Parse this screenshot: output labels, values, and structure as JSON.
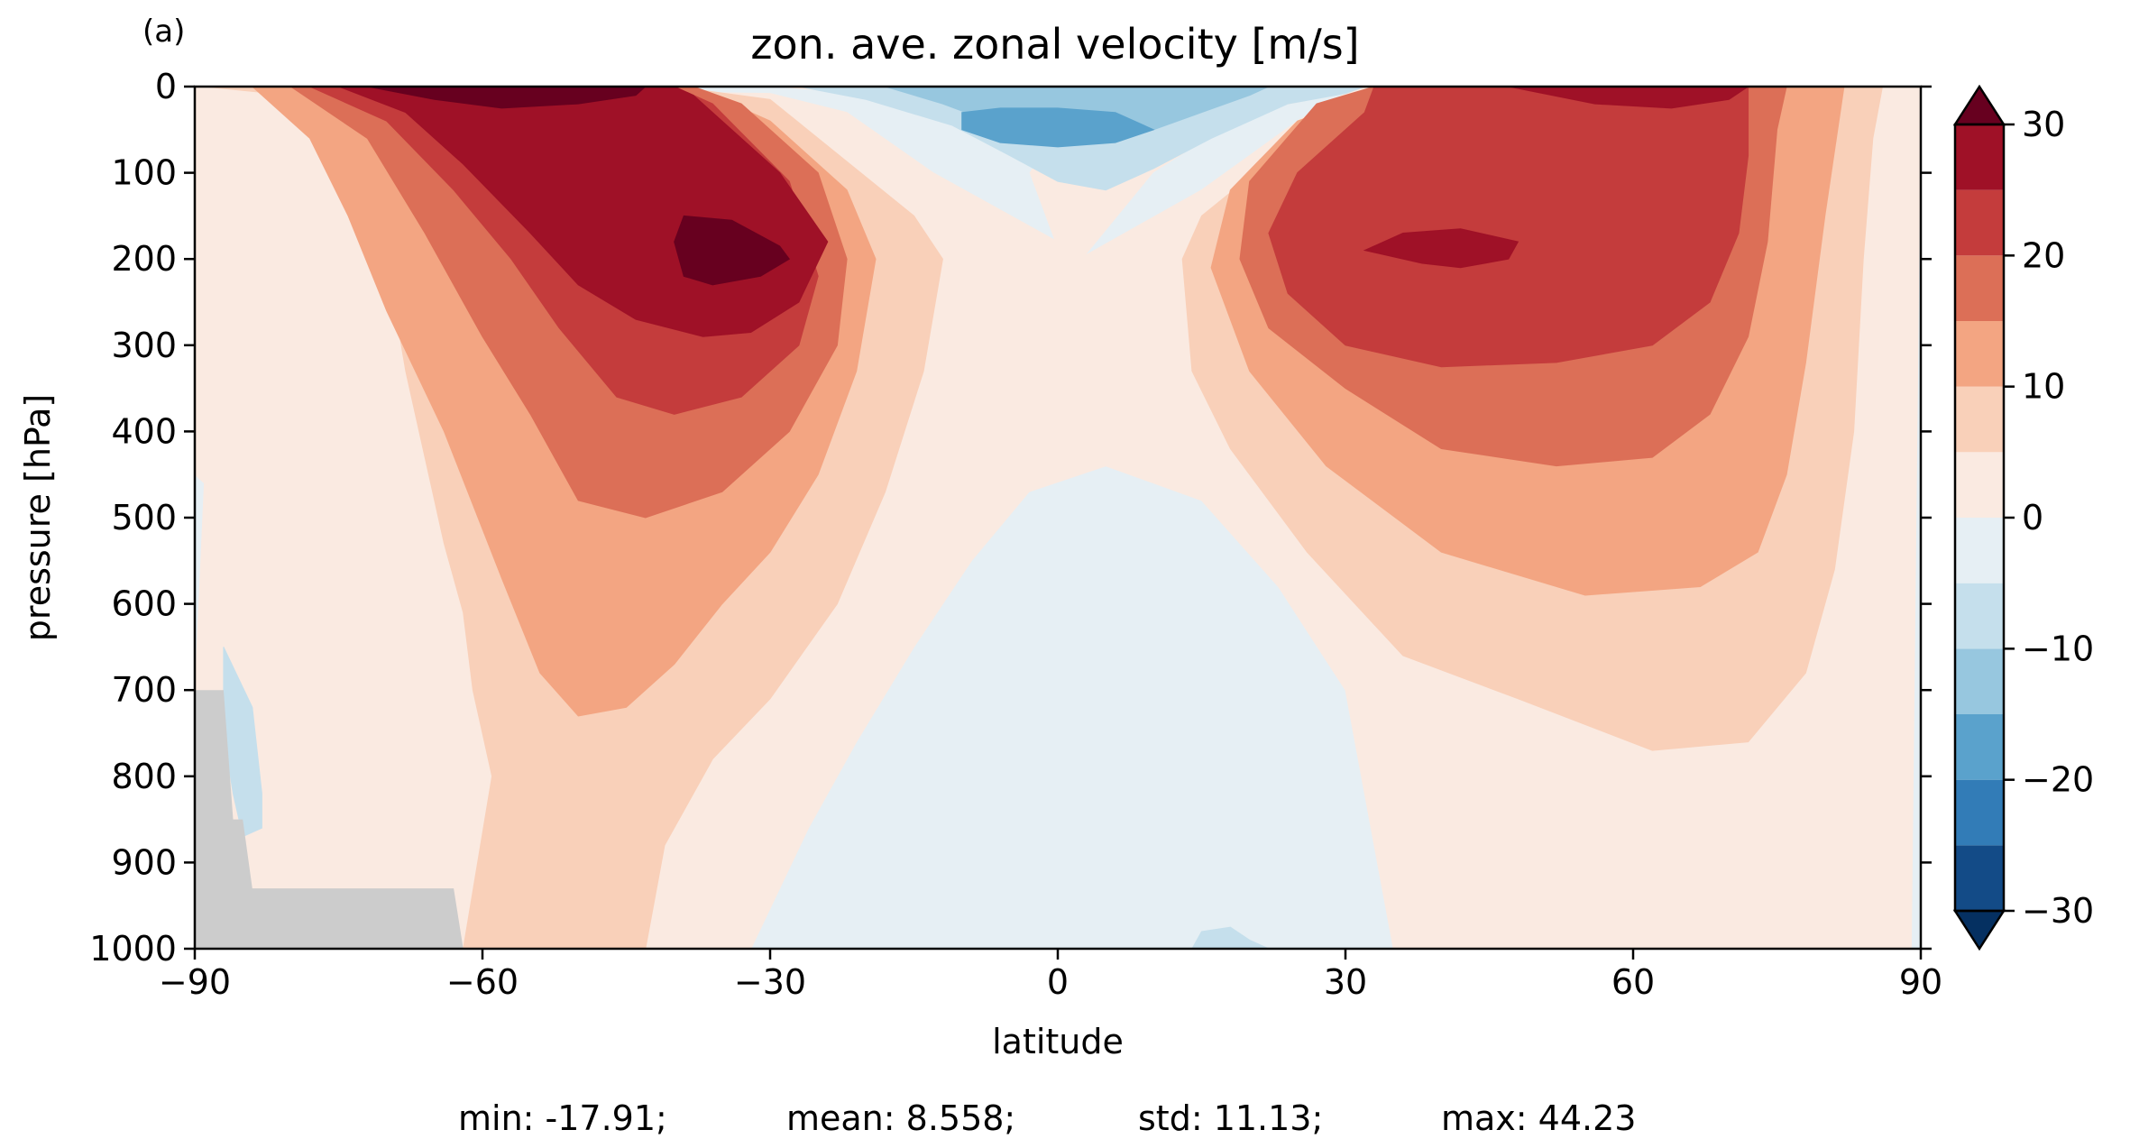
{
  "panel_label": "(a)",
  "chart_data": {
    "type": "heatmap",
    "subtype": "filled-contour",
    "title": "zon. ave. zonal velocity [m/s]",
    "xlabel": "latitude",
    "ylabel": "pressure [hPa]",
    "xlim": [
      -90,
      90
    ],
    "ylim": [
      1000,
      0
    ],
    "x_ticks": [
      "−90",
      "−60",
      "−30",
      "0",
      "30",
      "60",
      "90"
    ],
    "x_tick_values": [
      -90,
      -60,
      -30,
      0,
      30,
      60,
      90
    ],
    "y_ticks": [
      "0",
      "100",
      "200",
      "300",
      "400",
      "500",
      "600",
      "700",
      "800",
      "900",
      "1000"
    ],
    "y_tick_values": [
      0,
      100,
      200,
      300,
      400,
      500,
      600,
      700,
      800,
      900,
      1000
    ],
    "colorbar": {
      "ticks": [
        "30",
        "20",
        "10",
        "0",
        "−10",
        "−20",
        "−30"
      ],
      "tick_values": [
        30,
        20,
        10,
        0,
        -10,
        -20,
        -30
      ],
      "levels": [
        -30,
        -25,
        -20,
        -15,
        -10,
        -5,
        0,
        5,
        10,
        15,
        20,
        25,
        30
      ],
      "extend": "both",
      "under_color": "#053061",
      "over_color": "#67001f",
      "colors": [
        "#134b87",
        "#327cb7",
        "#5aa2cc",
        "#97c7df",
        "#c5dfec",
        "#e6eff4",
        "#faeae1",
        "#f9d0b9",
        "#f3a582",
        "#dc6f57",
        "#c43c3c",
        "#9f1127"
      ]
    },
    "stats": {
      "min_label": "min: -17.91;",
      "mean_label": "mean: 8.558;",
      "std_label": "std: 11.13;",
      "max_label": "max: 44.23"
    },
    "missing_color": "#cccccc",
    "regions": [
      {
        "level": -5,
        "color": "#e6eff4",
        "points": [
          [
            -90,
            0
          ],
          [
            -30,
            0
          ],
          [
            -20,
            10
          ],
          [
            -10,
            30
          ],
          [
            0,
            50
          ],
          [
            -3,
            100
          ],
          [
            0,
            190
          ],
          [
            3,
            195
          ],
          [
            10,
            100
          ],
          [
            20,
            30
          ],
          [
            30,
            8
          ],
          [
            90,
            0
          ],
          [
            90,
            1000
          ],
          [
            -90,
            1000
          ]
        ]
      },
      {
        "level": 0,
        "color": "#faeae1",
        "points": [
          [
            -90,
            0
          ],
          [
            -30,
            8
          ],
          [
            -22,
            30
          ],
          [
            -13,
            100
          ],
          [
            0,
            180
          ],
          [
            3,
            195
          ],
          [
            15,
            120
          ],
          [
            25,
            40
          ],
          [
            30,
            8
          ],
          [
            90,
            0
          ],
          [
            89,
            1000
          ],
          [
            35,
            1000
          ],
          [
            30,
            700
          ],
          [
            23,
            580
          ],
          [
            15,
            480
          ],
          [
            5,
            440
          ],
          [
            -3,
            470
          ],
          [
            -9,
            550
          ],
          [
            -15,
            650
          ],
          [
            -21,
            760
          ],
          [
            -26,
            860
          ],
          [
            -32,
            1000
          ],
          [
            -90,
            1000
          ],
          [
            -90,
            705
          ],
          [
            -89,
            460
          ],
          [
            -90,
            450
          ]
        ]
      },
      {
        "level": 5,
        "color": "#f9d0b9",
        "points": [
          [
            -89,
            0
          ],
          [
            -80,
            10
          ],
          [
            -75,
            60
          ],
          [
            -72,
            120
          ],
          [
            -70,
            200
          ],
          [
            -68,
            330
          ],
          [
            -66,
            430
          ],
          [
            -64,
            530
          ],
          [
            -62,
            610
          ],
          [
            -61,
            700
          ],
          [
            -59,
            800
          ],
          [
            -62,
            1000
          ],
          [
            -43,
            1000
          ],
          [
            -41,
            880
          ],
          [
            -36,
            780
          ],
          [
            -30,
            710
          ],
          [
            -23,
            600
          ],
          [
            -18,
            470
          ],
          [
            -14,
            330
          ],
          [
            -12,
            200
          ],
          [
            -15,
            150
          ],
          [
            -30,
            15
          ],
          [
            -40,
            0
          ],
          [
            40,
            0
          ],
          [
            30,
            15
          ],
          [
            15,
            150
          ],
          [
            13,
            200
          ],
          [
            14,
            330
          ],
          [
            18,
            420
          ],
          [
            26,
            540
          ],
          [
            36,
            660
          ],
          [
            48,
            710
          ],
          [
            62,
            770
          ],
          [
            72,
            760
          ],
          [
            78,
            680
          ],
          [
            81,
            560
          ],
          [
            83,
            400
          ],
          [
            84,
            200
          ],
          [
            85,
            60
          ],
          [
            86,
            0
          ]
        ]
      },
      {
        "level": 10,
        "color": "#f3a582",
        "points": [
          [
            -84,
            0
          ],
          [
            -78,
            60
          ],
          [
            -74,
            150
          ],
          [
            -70,
            260
          ],
          [
            -64,
            400
          ],
          [
            -58,
            570
          ],
          [
            -54,
            680
          ],
          [
            -50,
            730
          ],
          [
            -45,
            720
          ],
          [
            -40,
            670
          ],
          [
            -35,
            600
          ],
          [
            -30,
            540
          ],
          [
            -25,
            450
          ],
          [
            -21,
            330
          ],
          [
            -19,
            200
          ],
          [
            -22,
            120
          ],
          [
            -30,
            40
          ],
          [
            -38,
            0
          ],
          [
            35,
            0
          ],
          [
            25,
            40
          ],
          [
            18,
            120
          ],
          [
            16,
            210
          ],
          [
            20,
            330
          ],
          [
            28,
            440
          ],
          [
            40,
            540
          ],
          [
            55,
            590
          ],
          [
            67,
            580
          ],
          [
            73,
            540
          ],
          [
            76,
            450
          ],
          [
            78,
            320
          ],
          [
            80,
            150
          ],
          [
            82,
            0
          ]
        ]
      },
      {
        "level": 15,
        "color": "#dc6f57",
        "points": [
          [
            -80,
            0
          ],
          [
            -72,
            60
          ],
          [
            -66,
            170
          ],
          [
            -60,
            290
          ],
          [
            -55,
            380
          ],
          [
            -50,
            480
          ],
          [
            -43,
            500
          ],
          [
            -35,
            470
          ],
          [
            -28,
            400
          ],
          [
            -23,
            300
          ],
          [
            -22,
            200
          ],
          [
            -25,
            100
          ],
          [
            -33,
            20
          ],
          [
            -38,
            0
          ],
          [
            33,
            0
          ],
          [
            27,
            20
          ],
          [
            20,
            110
          ],
          [
            19,
            200
          ],
          [
            22,
            280
          ],
          [
            30,
            350
          ],
          [
            40,
            420
          ],
          [
            52,
            440
          ],
          [
            62,
            430
          ],
          [
            68,
            380
          ],
          [
            72,
            290
          ],
          [
            74,
            180
          ],
          [
            75,
            50
          ],
          [
            76,
            0
          ]
        ]
      },
      {
        "level": 20,
        "color": "#c43c3c",
        "points": [
          [
            -78,
            0
          ],
          [
            -70,
            40
          ],
          [
            -63,
            120
          ],
          [
            -57,
            200
          ],
          [
            -52,
            280
          ],
          [
            -46,
            360
          ],
          [
            -40,
            380
          ],
          [
            -33,
            360
          ],
          [
            -27,
            300
          ],
          [
            -25,
            220
          ],
          [
            -28,
            110
          ],
          [
            -36,
            20
          ],
          [
            -40,
            0
          ],
          [
            -40,
            0
          ],
          [
            33,
            0
          ],
          [
            32,
            30
          ],
          [
            25,
            100
          ],
          [
            22,
            170
          ],
          [
            24,
            240
          ],
          [
            30,
            300
          ],
          [
            40,
            325
          ],
          [
            52,
            320
          ],
          [
            62,
            300
          ],
          [
            68,
            250
          ],
          [
            71,
            170
          ],
          [
            72,
            80
          ],
          [
            72,
            0
          ]
        ]
      },
      {
        "level": 25,
        "color": "#9f1127",
        "points": [
          [
            -75,
            0
          ],
          [
            -68,
            30
          ],
          [
            -62,
            90
          ],
          [
            -55,
            170
          ],
          [
            -50,
            230
          ],
          [
            -44,
            270
          ],
          [
            -37,
            290
          ],
          [
            -32,
            285
          ],
          [
            -27,
            250
          ],
          [
            -24,
            180
          ],
          [
            -29,
            100
          ],
          [
            -38,
            10
          ],
          [
            -40,
            0
          ]
        ]
      },
      {
        "level": 25,
        "color": "#9f1127",
        "points": [
          [
            47,
            0
          ],
          [
            56,
            20
          ],
          [
            64,
            25
          ],
          [
            70,
            15
          ],
          [
            72,
            0
          ]
        ]
      },
      {
        "level": 25,
        "color": "#9f1127",
        "points": [
          [
            32,
            190
          ],
          [
            36,
            170
          ],
          [
            42,
            165
          ],
          [
            48,
            180
          ],
          [
            47,
            200
          ],
          [
            42,
            210
          ],
          [
            38,
            205
          ]
        ]
      },
      {
        "level": 30,
        "color": "#67001f",
        "points": [
          [
            -72,
            0
          ],
          [
            -65,
            15
          ],
          [
            -58,
            25
          ],
          [
            -50,
            20
          ],
          [
            -44,
            10
          ],
          [
            -43,
            0
          ]
        ]
      },
      {
        "level": 30,
        "color": "#67001f",
        "points": [
          [
            -39,
            150
          ],
          [
            -34,
            155
          ],
          [
            -29,
            185
          ],
          [
            -28,
            200
          ],
          [
            -31,
            220
          ],
          [
            -36,
            230
          ],
          [
            -39,
            220
          ],
          [
            -40,
            180
          ]
        ]
      },
      {
        "level": -5,
        "color": "#c5dfec",
        "points": [
          [
            -27,
            0
          ],
          [
            -20,
            15
          ],
          [
            -11,
            45
          ],
          [
            -5,
            80
          ],
          [
            0,
            110
          ],
          [
            5,
            120
          ],
          [
            10,
            95
          ],
          [
            16,
            60
          ],
          [
            24,
            20
          ],
          [
            30,
            8
          ],
          [
            32,
            0
          ]
        ]
      },
      {
        "level": -5,
        "color": "#c5dfec",
        "points": [
          [
            -87,
            650
          ],
          [
            -84,
            720
          ],
          [
            -83,
            820
          ],
          [
            -83,
            860
          ],
          [
            -85,
            870
          ],
          [
            -86,
            820
          ],
          [
            -87,
            750
          ]
        ]
      },
      {
        "level": -5,
        "color": "#c5dfec",
        "points": [
          [
            14,
            1000
          ],
          [
            15,
            980
          ],
          [
            18,
            975
          ],
          [
            20,
            990
          ],
          [
            22,
            1000
          ]
        ]
      },
      {
        "level": -10,
        "color": "#97c7df",
        "points": [
          [
            -18,
            0
          ],
          [
            -12,
            20
          ],
          [
            -6,
            45
          ],
          [
            0,
            60
          ],
          [
            5,
            65
          ],
          [
            10,
            50
          ],
          [
            15,
            30
          ],
          [
            20,
            10
          ],
          [
            22,
            0
          ]
        ]
      },
      {
        "level": -15,
        "color": "#5aa2cc",
        "points": [
          [
            -10,
            30
          ],
          [
            -6,
            25
          ],
          [
            0,
            25
          ],
          [
            6,
            30
          ],
          [
            10,
            50
          ],
          [
            6,
            65
          ],
          [
            0,
            70
          ],
          [
            -6,
            65
          ],
          [
            -10,
            50
          ]
        ]
      }
    ],
    "masked": [
      [
        -90,
        1000
      ],
      [
        -90,
        700
      ],
      [
        -87,
        700
      ],
      [
        -86,
        850
      ],
      [
        -85,
        850
      ],
      [
        -84,
        930
      ],
      [
        -63,
        930
      ],
      [
        -62,
        1000
      ]
    ]
  }
}
